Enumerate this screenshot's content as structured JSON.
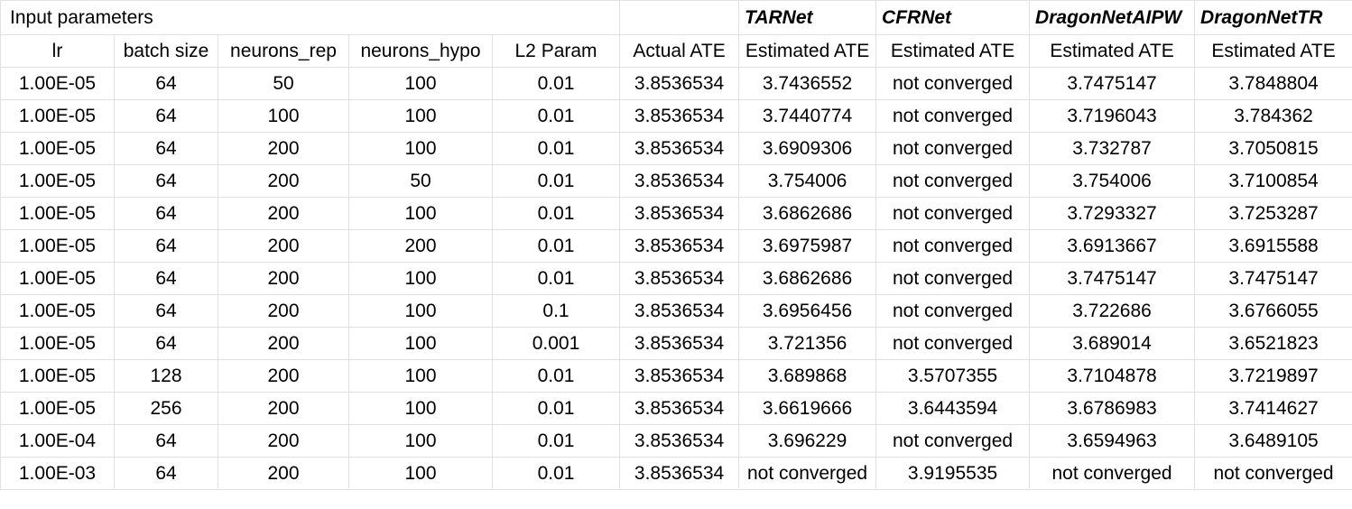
{
  "sheet": {
    "section_title": "Input parameters",
    "model_names": [
      "TARNet",
      "CFRNet",
      "DragonNetAIPW",
      "DragonNetTR"
    ],
    "columns": [
      "lr",
      "batch size",
      "neurons_rep",
      "neurons_hypo",
      "L2 Param",
      "Actual ATE",
      "Estimated ATE",
      "Estimated ATE",
      "Estimated ATE",
      "Estimated ATE"
    ],
    "rows": [
      [
        "1.00E-05",
        "64",
        "50",
        "100",
        "0.01",
        "3.8536534",
        "3.7436552",
        "not converged",
        "3.7475147",
        "3.7848804"
      ],
      [
        "1.00E-05",
        "64",
        "100",
        "100",
        "0.01",
        "3.8536534",
        "3.7440774",
        "not converged",
        "3.7196043",
        "3.784362"
      ],
      [
        "1.00E-05",
        "64",
        "200",
        "100",
        "0.01",
        "3.8536534",
        "3.6909306",
        "not converged",
        "3.732787",
        "3.7050815"
      ],
      [
        "1.00E-05",
        "64",
        "200",
        "50",
        "0.01",
        "3.8536534",
        "3.754006",
        "not converged",
        "3.754006",
        "3.7100854"
      ],
      [
        "1.00E-05",
        "64",
        "200",
        "100",
        "0.01",
        "3.8536534",
        "3.6862686",
        "not converged",
        "3.7293327",
        "3.7253287"
      ],
      [
        "1.00E-05",
        "64",
        "200",
        "200",
        "0.01",
        "3.8536534",
        "3.6975987",
        "not converged",
        "3.6913667",
        "3.6915588"
      ],
      [
        "1.00E-05",
        "64",
        "200",
        "100",
        "0.01",
        "3.8536534",
        "3.6862686",
        "not converged",
        "3.7475147",
        "3.7475147"
      ],
      [
        "1.00E-05",
        "64",
        "200",
        "100",
        "0.1",
        "3.8536534",
        "3.6956456",
        "not converged",
        "3.722686",
        "3.6766055"
      ],
      [
        "1.00E-05",
        "64",
        "200",
        "100",
        "0.001",
        "3.8536534",
        "3.721356",
        "not converged",
        "3.689014",
        "3.6521823"
      ],
      [
        "1.00E-05",
        "128",
        "200",
        "100",
        "0.01",
        "3.8536534",
        "3.689868",
        "3.5707355",
        "3.7104878",
        "3.7219897"
      ],
      [
        "1.00E-05",
        "256",
        "200",
        "100",
        "0.01",
        "3.8536534",
        "3.6619666",
        "3.6443594",
        "3.6786983",
        "3.7414627"
      ],
      [
        "1.00E-04",
        "64",
        "200",
        "100",
        "0.01",
        "3.8536534",
        "3.696229",
        "not converged",
        "3.6594963",
        "3.6489105"
      ],
      [
        "1.00E-03",
        "64",
        "200",
        "100",
        "0.01",
        "3.8536534",
        "not converged",
        "3.9195535",
        "not converged",
        "not converged"
      ]
    ]
  }
}
